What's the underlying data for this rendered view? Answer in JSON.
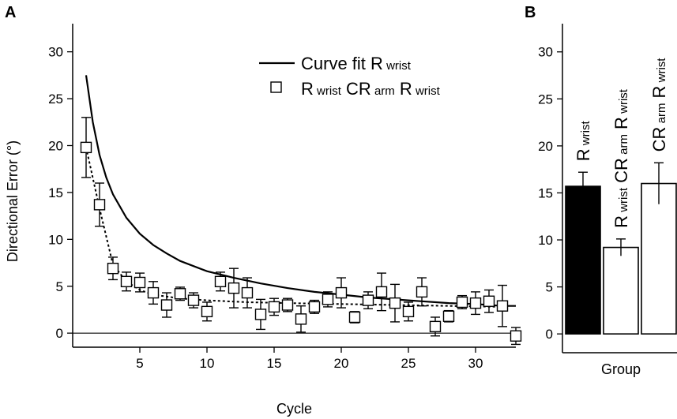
{
  "panels": {
    "a_label": "A",
    "b_label": "B"
  },
  "chart_data": [
    {
      "type": "scatter",
      "panel": "A",
      "xlabel": "Cycle",
      "ylabel": "Directional Error (°)",
      "xlim": [
        0,
        33
      ],
      "ylim": [
        -1.5,
        33
      ],
      "xticks": [
        5,
        10,
        15,
        20,
        25,
        30
      ],
      "yticks": [
        0,
        5,
        10,
        15,
        20,
        25,
        30
      ],
      "legend": {
        "position": "top-right",
        "curve": {
          "text": "Curve fit R",
          "sub": "wrist"
        },
        "markers": {
          "parts": [
            "R",
            "wrist",
            "CR",
            "arm",
            "R",
            "wrist"
          ]
        }
      },
      "series": [
        {
          "kind": "markers",
          "x": [
            1,
            2,
            3,
            4,
            5,
            6,
            7,
            8,
            9,
            10,
            11,
            12,
            13,
            14,
            15,
            16,
            17,
            18,
            19,
            20,
            21,
            22,
            23,
            24,
            25,
            26,
            27,
            28,
            29,
            30,
            31,
            32,
            33
          ],
          "y": [
            19.8,
            13.7,
            6.9,
            5.5,
            5.4,
            4.3,
            3.0,
            4.2,
            3.5,
            2.3,
            5.5,
            4.8,
            4.3,
            2.0,
            2.8,
            3.0,
            1.5,
            2.8,
            3.6,
            4.3,
            1.7,
            3.5,
            4.4,
            3.2,
            2.3,
            4.4,
            0.7,
            1.8,
            3.3,
            3.2,
            3.4,
            2.9,
            -0.3
          ],
          "err": [
            3.2,
            2.3,
            1.2,
            1.0,
            1.0,
            1.2,
            1.3,
            0.7,
            0.8,
            1.0,
            1.0,
            2.1,
            1.6,
            1.6,
            0.9,
            0.7,
            1.4,
            0.7,
            0.8,
            1.6,
            0.6,
            0.9,
            2.0,
            2.0,
            1.0,
            1.5,
            1.0,
            0.6,
            0.7,
            1.2,
            1.2,
            2.2,
            0.9
          ]
        },
        {
          "kind": "fit-dotted",
          "x": [
            1,
            2,
            3,
            4,
            5,
            6,
            8,
            10,
            13,
            16,
            20,
            24,
            28,
            32
          ],
          "y": [
            19.8,
            13.3,
            7.3,
            5.5,
            4.6,
            4.1,
            3.7,
            3.5,
            3.3,
            3.2,
            3.1,
            3.0,
            2.9,
            2.8
          ]
        },
        {
          "kind": "curve-fit",
          "x": [
            1,
            1.5,
            2,
            2.5,
            3,
            4,
            5,
            6,
            7,
            8,
            10,
            12,
            14,
            16,
            18,
            20,
            22,
            24,
            26,
            28,
            30,
            32,
            33
          ],
          "y": [
            27.5,
            22.5,
            19.0,
            16.6,
            14.8,
            12.3,
            10.6,
            9.4,
            8.5,
            7.7,
            6.6,
            5.9,
            5.3,
            4.8,
            4.4,
            4.1,
            3.8,
            3.6,
            3.4,
            3.2,
            3.1,
            2.9,
            2.9
          ]
        }
      ]
    },
    {
      "type": "bar",
      "panel": "B",
      "xlabel": "Group",
      "ylim": [
        -2,
        33
      ],
      "yticks": [
        0,
        5,
        10,
        15,
        20,
        25,
        30
      ],
      "bars": [
        {
          "value": 15.7,
          "err": 1.5,
          "fill": "#000000",
          "label_parts": [
            "R",
            "wrist"
          ]
        },
        {
          "value": 9.2,
          "err": 0.9,
          "fill": "#ffffff",
          "label_parts": [
            "R",
            "wrist",
            "CR",
            "arm",
            "R",
            "wrist"
          ]
        },
        {
          "value": 16.0,
          "err": 2.2,
          "fill": "#ffffff",
          "label_parts": [
            "CR",
            "arm",
            "R",
            "wrist"
          ]
        }
      ]
    }
  ]
}
